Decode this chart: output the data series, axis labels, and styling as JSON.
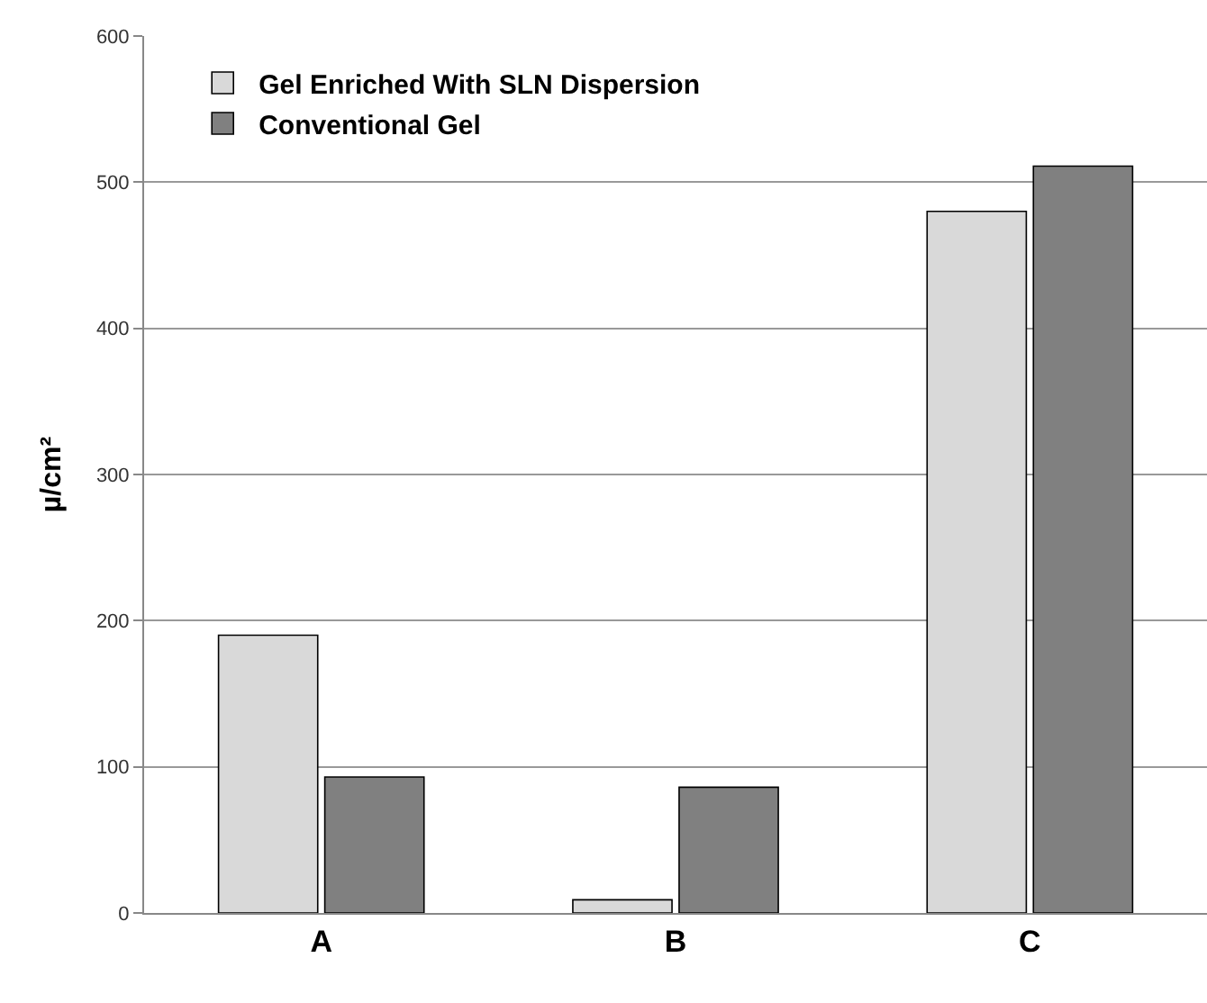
{
  "chart_data": {
    "type": "bar",
    "ylabel": "µ/cm²",
    "categories": [
      "A",
      "B",
      "C"
    ],
    "series": [
      {
        "name": "Gel Enriched With SLN Dispersion",
        "color": "#d9d9d9",
        "values": [
          190,
          9,
          480
        ]
      },
      {
        "name": "Conventional Gel",
        "color": "#808080",
        "values": [
          93,
          86,
          511
        ]
      }
    ],
    "ylim": [
      0,
      600
    ],
    "yticks": [
      0,
      100,
      200,
      300,
      400,
      500,
      600
    ],
    "grid": "y",
    "legend": "top left"
  }
}
